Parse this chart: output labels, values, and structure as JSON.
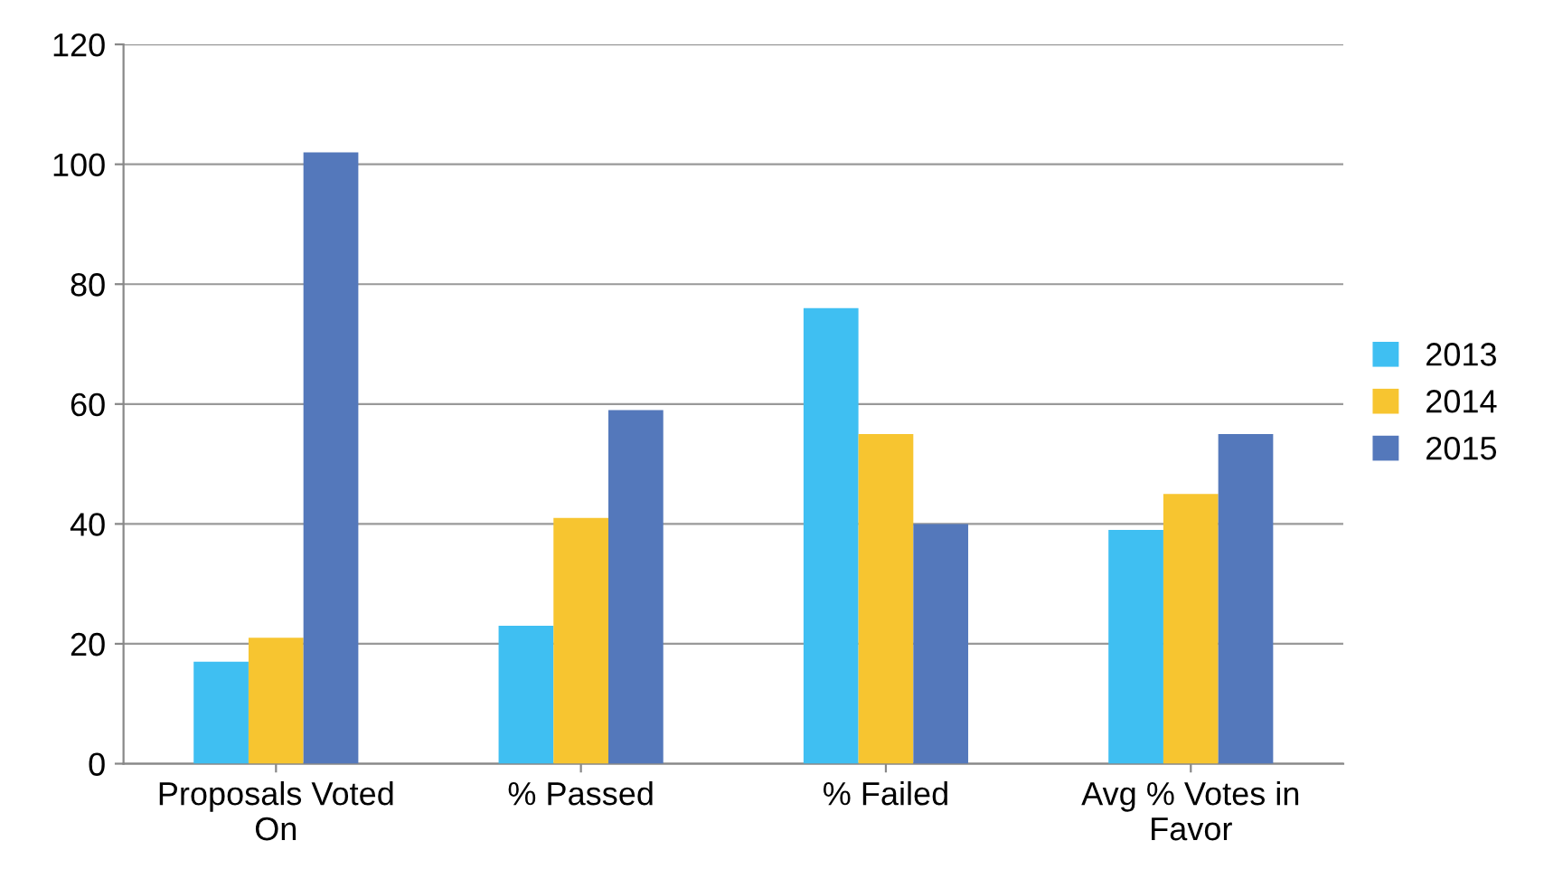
{
  "chart_data": {
    "type": "bar",
    "categories": [
      "Proposals Voted On",
      "% Passed",
      "% Failed",
      "Avg % Votes in Favor"
    ],
    "series": [
      {
        "name": "2013",
        "color": "#3fbff2",
        "values": [
          17,
          23,
          76,
          39
        ]
      },
      {
        "name": "2014",
        "color": "#f7c530",
        "values": [
          21,
          41,
          55,
          45
        ]
      },
      {
        "name": "2015",
        "color": "#5478bb",
        "values": [
          102,
          59,
          40,
          55
        ]
      }
    ],
    "ylim": [
      0,
      120
    ],
    "yticks": [
      0,
      20,
      40,
      60,
      80,
      100,
      120
    ],
    "grid": "y",
    "legend": "right"
  }
}
